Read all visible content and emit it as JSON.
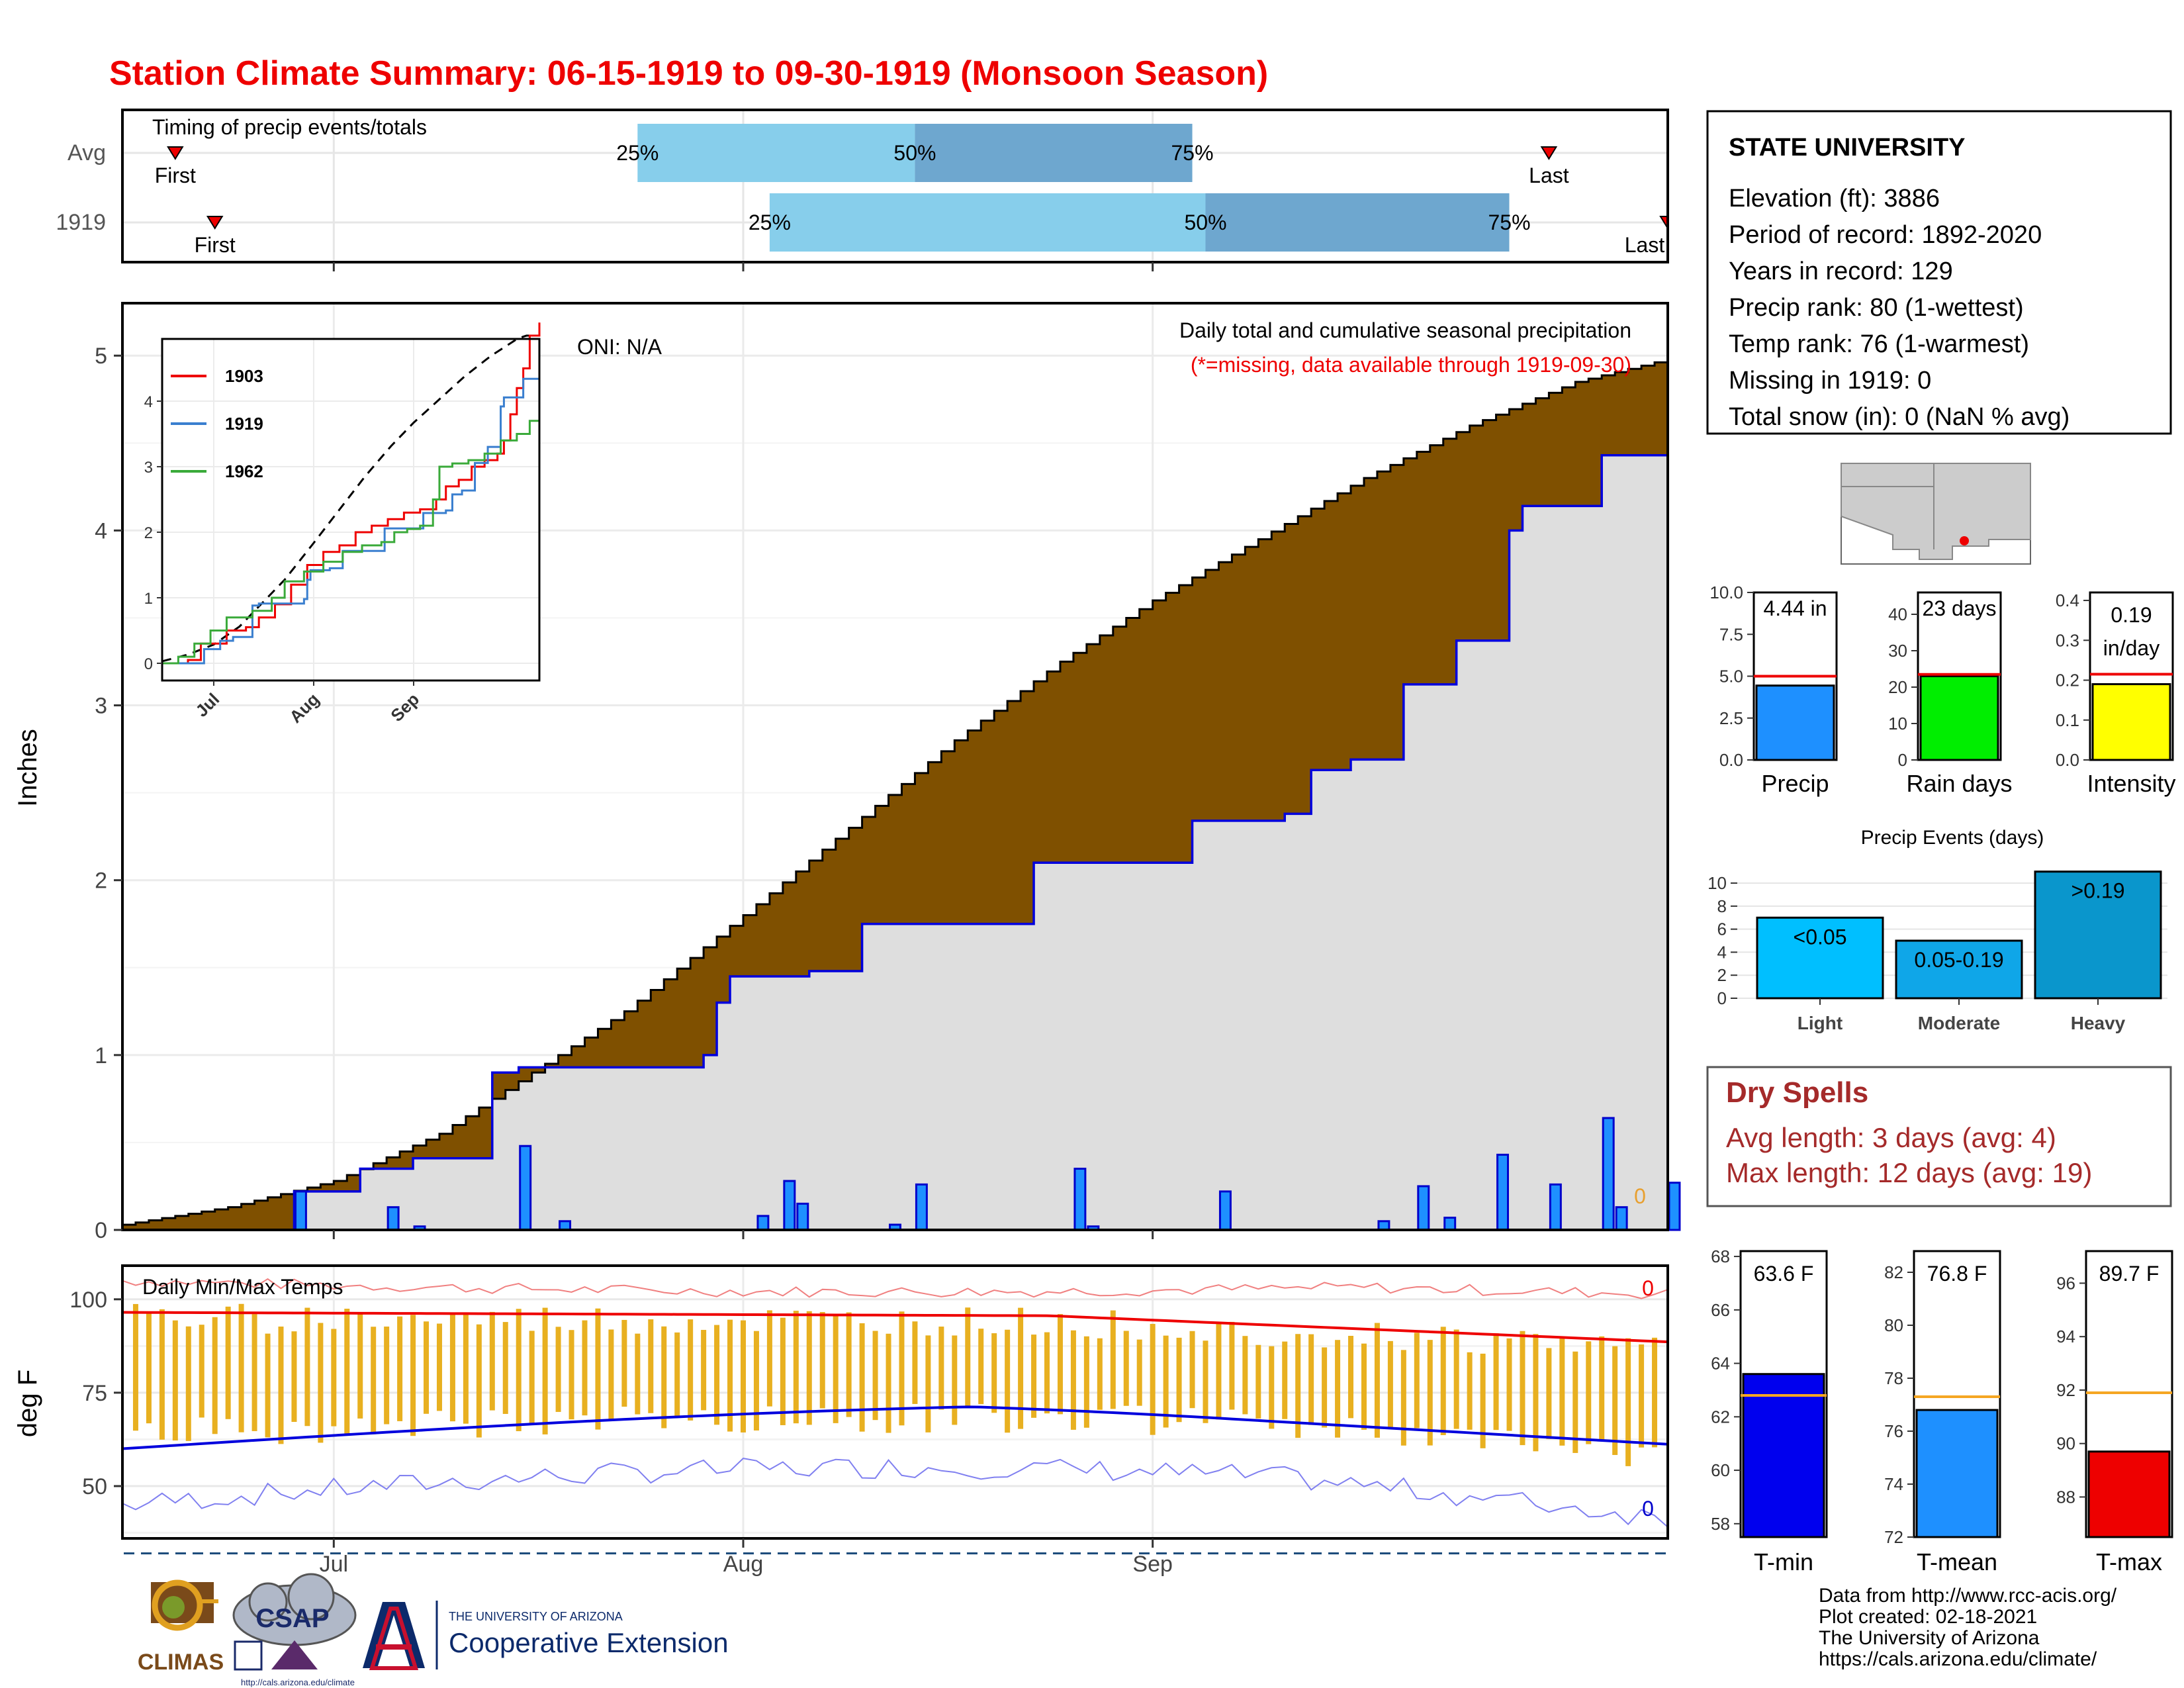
{
  "title": "Station Climate Summary: 06-15-1919 to 09-30-1919 (Monsoon Season)",
  "colors": {
    "title": "#ee0000",
    "brown": "#7f5000",
    "lightblue": "#87ceeb",
    "steelblue": "#6ea7cf",
    "barblue": "#1e90ff",
    "red": "#ee0000",
    "navy": "#0000cc",
    "gold": "#e8b020",
    "green": "#00ee00",
    "yellow": "#ffff00",
    "dryspell": "#a52a2a"
  },
  "timing": {
    "label": "Timing of precip events/totals",
    "rows": [
      {
        "name": "Avg",
        "first_day": 4,
        "p25_day": 39,
        "p50_day": 60,
        "p75_day": 81,
        "last_day": 108
      },
      {
        "name": "1919",
        "first_day": 7,
        "p25_day": 49,
        "p50_day": 82,
        "p75_day": 105,
        "last_day": 117
      }
    ],
    "first_label": "First",
    "last_label": "Last",
    "pct_labels": [
      "25%",
      "50%",
      "75%"
    ]
  },
  "precip_panel": {
    "ylabel": "Inches",
    "oni": "ONI: N/A",
    "subtitle": "Daily total and cumulative seasonal precipitation",
    "missing_note": "(*=missing, data available through 1919-09-30)",
    "y_ticks": [
      "0",
      "1",
      "2",
      "3",
      "4",
      "5"
    ],
    "ylim": [
      0,
      5.3
    ],
    "x_ticks": [
      "Jul",
      "Aug",
      "Sep"
    ],
    "x_tick_days": [
      16,
      47,
      78
    ],
    "zero_marker": "0",
    "avg_cum_points": [
      [
        0,
        0.03
      ],
      [
        8,
        0.13
      ],
      [
        16,
        0.28
      ],
      [
        24,
        0.55
      ],
      [
        30,
        0.85
      ],
      [
        38,
        1.25
      ],
      [
        47,
        1.8
      ],
      [
        55,
        2.3
      ],
      [
        63,
        2.8
      ],
      [
        71,
        3.25
      ],
      [
        78,
        3.6
      ],
      [
        86,
        3.95
      ],
      [
        94,
        4.3
      ],
      [
        102,
        4.6
      ],
      [
        110,
        4.85
      ],
      [
        117,
        4.98
      ]
    ],
    "cum_1919_points": [
      [
        0,
        0
      ],
      [
        12,
        0
      ],
      [
        13,
        0.22
      ],
      [
        18,
        0.35
      ],
      [
        22,
        0.41
      ],
      [
        27,
        0.41
      ],
      [
        28,
        0.9
      ],
      [
        30,
        0.93
      ],
      [
        43,
        0.93
      ],
      [
        44,
        1.0
      ],
      [
        45,
        1.3
      ],
      [
        46,
        1.45
      ],
      [
        52,
        1.48
      ],
      [
        56,
        1.75
      ],
      [
        68,
        1.75
      ],
      [
        69,
        2.1
      ],
      [
        81,
        2.34
      ],
      [
        88,
        2.38
      ],
      [
        90,
        2.63
      ],
      [
        93,
        2.69
      ],
      [
        97,
        3.12
      ],
      [
        101,
        3.37
      ],
      [
        105,
        4.0
      ],
      [
        106,
        4.14
      ],
      [
        112,
        4.43
      ],
      [
        117,
        4.44
      ]
    ],
    "daily_bars": [
      [
        13,
        0.22
      ],
      [
        20,
        0.13
      ],
      [
        22,
        0.02
      ],
      [
        30,
        0.48
      ],
      [
        33,
        0.05
      ],
      [
        48,
        0.08
      ],
      [
        50,
        0.28
      ],
      [
        51,
        0.15
      ],
      [
        58,
        0.03
      ],
      [
        60,
        0.26
      ],
      [
        72,
        0.35
      ],
      [
        73,
        0.02
      ],
      [
        83,
        0.22
      ],
      [
        95,
        0.05
      ],
      [
        98,
        0.25
      ],
      [
        100,
        0.07
      ],
      [
        104,
        0.43
      ],
      [
        108,
        0.26
      ],
      [
        112,
        0.64
      ],
      [
        113,
        0.13
      ],
      [
        117,
        0.27
      ]
    ]
  },
  "inset": {
    "y_ticks": [
      "0",
      "1",
      "2",
      "3",
      "4"
    ],
    "x_ticks": [
      "Jul",
      "Aug",
      "Sep"
    ],
    "legend": [
      {
        "name": "1903",
        "color": "#ee0000"
      },
      {
        "name": "1919",
        "color": "#3a7fcf"
      },
      {
        "name": "1962",
        "color": "#3aaa3a"
      }
    ]
  },
  "temp_panel": {
    "label": "Daily Min/Max Temps",
    "ylabel": "deg F",
    "y_ticks": [
      "50",
      "75",
      "100"
    ],
    "ylim": [
      36,
      109
    ],
    "zero_top": "0",
    "zero_bottom": "0"
  },
  "station": {
    "name": "STATE UNIVERSITY",
    "lines": [
      "Elevation (ft): 3886",
      "Period of record: 1892-2020",
      "Years in record: 129",
      "Precip rank: 80 (1-wettest)",
      "Temp rank: 76 (1-warmest)",
      "Missing in 1919: 0",
      "Total snow (in): 0 (NaN % avg)"
    ]
  },
  "mini_bars": [
    {
      "label": "Precip",
      "value_text": "4.44 in",
      "value": 4.44,
      "avg": 5.0,
      "ymin": 0,
      "ymax": 10,
      "ticks": [
        "0.0",
        "2.5",
        "5.0",
        "7.5",
        "10.0"
      ],
      "tick_values": [
        0,
        2.5,
        5,
        7.5,
        10
      ],
      "color": "#1e90ff"
    },
    {
      "label": "Rain days",
      "value_text": "23 days",
      "value": 23,
      "avg": 23.5,
      "ymin": 0,
      "ymax": 46,
      "ticks": [
        "0",
        "10",
        "20",
        "30",
        "40"
      ],
      "tick_values": [
        0,
        10,
        20,
        30,
        40
      ],
      "color": "#00ee00"
    },
    {
      "label": "Intensity",
      "value_text": "0.19",
      "value_text2": "in/day",
      "value": 0.19,
      "avg": 0.215,
      "ymin": 0,
      "ymax": 0.42,
      "ticks": [
        "0.0",
        "0.1",
        "0.2",
        "0.3",
        "0.4"
      ],
      "tick_values": [
        0,
        0.1,
        0.2,
        0.3,
        0.4
      ],
      "color": "#ffff00"
    }
  ],
  "events": {
    "title": "Precip Events (days)",
    "ticks": [
      "0",
      "2",
      "4",
      "6",
      "8",
      "10"
    ],
    "tick_values": [
      0,
      2,
      4,
      6,
      8,
      10
    ],
    "ymax": 11.5,
    "bars": [
      {
        "cat": "Light",
        "label": "<0.05",
        "value": 7,
        "color": "#00bfff"
      },
      {
        "cat": "Moderate",
        "label": "0.05-0.19",
        "value": 5,
        "color": "#0fa6e8"
      },
      {
        "cat": "Heavy",
        "label": ">0.19",
        "value": 11,
        "color": "#0a96cc"
      }
    ]
  },
  "dry_spells": {
    "title": "Dry Spells",
    "avg_line": "Avg length: 3 days (avg: 4)",
    "max_line": "Max length: 12 days (avg: 19)"
  },
  "temp_bars": [
    {
      "label": "T-min",
      "value_text": "63.6 F",
      "value": 63.6,
      "avg": 62.8,
      "ymin": 57.5,
      "ymax": 68.2,
      "ticks": [
        "58",
        "60",
        "62",
        "64",
        "66",
        "68"
      ],
      "tick_values": [
        58,
        60,
        62,
        64,
        66,
        68
      ],
      "color": "#0000ee"
    },
    {
      "label": "T-mean",
      "value_text": "76.8 F",
      "value": 76.8,
      "avg": 77.3,
      "ymin": 72,
      "ymax": 82.8,
      "ticks": [
        "72",
        "74",
        "76",
        "78",
        "80",
        "82"
      ],
      "tick_values": [
        72,
        74,
        76,
        78,
        80,
        82
      ],
      "color": "#1e90ff"
    },
    {
      "label": "T-max",
      "value_text": "89.7 F",
      "value": 89.7,
      "avg": 91.9,
      "ymin": 86.5,
      "ymax": 97.2,
      "ticks": [
        "88",
        "90",
        "92",
        "94",
        "96"
      ],
      "tick_values": [
        88,
        90,
        92,
        94,
        96
      ],
      "color": "#ee0000"
    }
  ],
  "credits": [
    "Data from http://www.rcc-acis.org/",
    "Plot created: 02-18-2021",
    "The University of Arizona",
    "https://cals.arizona.edu/climate/"
  ],
  "logos": {
    "climas": "CLIMAS",
    "csap": "CSAP",
    "csap_url": "http://cals.arizona.edu/climate",
    "ua_small": "THE UNIVERSITY OF ARIZONA",
    "coop": "Cooperative Extension"
  }
}
